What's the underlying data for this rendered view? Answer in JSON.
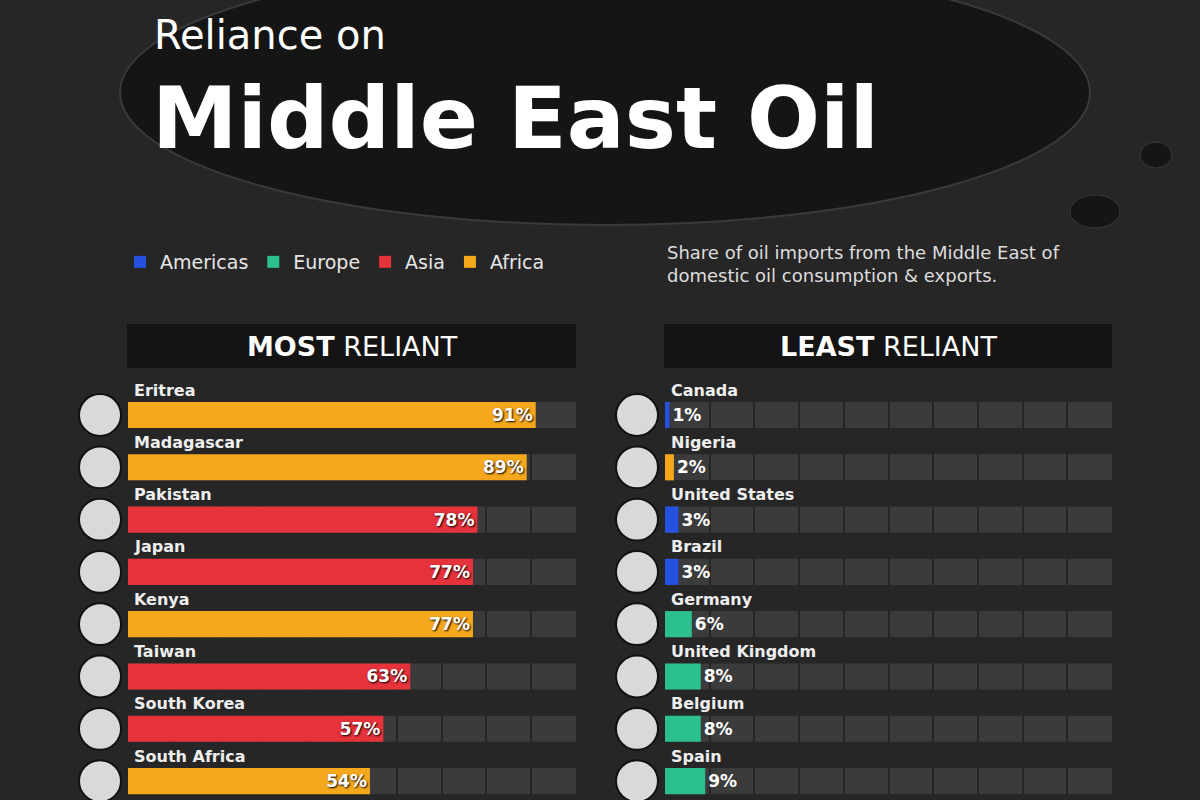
{
  "header": {
    "kicker": "Reliance on",
    "title": "Middle East Oil",
    "subtitle": "Share of oil imports from the Middle East of domestic oil consumption & exports."
  },
  "chart_data": [
    {
      "type": "bar",
      "orientation": "horizontal",
      "title": "MOST RELIANT",
      "categories": [
        "Eritrea",
        "Madagascar",
        "Pakistan",
        "Japan",
        "Kenya",
        "Taiwan",
        "South Korea",
        "South Africa"
      ],
      "series": [
        {
          "name": "Americas",
          "color": "#2451e0",
          "values": [
            null,
            null,
            null,
            null,
            null,
            null,
            null,
            null
          ],
          "value_labels": [
            null,
            null,
            null,
            null,
            null,
            null,
            null,
            null
          ]
        },
        {
          "name": "Europe",
          "color": "#2cc08f",
          "values": [
            null,
            null,
            null,
            null,
            null,
            null,
            null,
            null
          ],
          "value_labels": [
            null,
            null,
            null,
            null,
            null,
            null,
            null,
            null
          ]
        },
        {
          "name": "Asia",
          "color": "#e5323b",
          "values": [
            null,
            null,
            78,
            77,
            null,
            63,
            57,
            null
          ],
          "value_labels": [
            null,
            null,
            "78%",
            "77%",
            null,
            "63%",
            "57%",
            null
          ]
        },
        {
          "name": "Africa",
          "color": "#f5a81c",
          "values": [
            91,
            89,
            null,
            null,
            77,
            null,
            null,
            54
          ],
          "value_labels": [
            "91%",
            "89%",
            null,
            null,
            "77%",
            null,
            null,
            "54%"
          ]
        }
      ],
      "xlim": [
        0,
        100
      ],
      "xticks": [
        0,
        10,
        20,
        30,
        40,
        50,
        60,
        70,
        80,
        90,
        100
      ],
      "grid": true,
      "tick_labels": false,
      "data_labels": true,
      "legend": "top left"
    },
    {
      "type": "bar",
      "orientation": "horizontal",
      "title": "LEAST RELIANT",
      "categories": [
        "Canada",
        "Nigeria",
        "United States",
        "Brazil",
        "Germany",
        "United Kingdom",
        "Belgium",
        "Spain"
      ],
      "series": [
        {
          "name": "Americas",
          "color": "#2451e0",
          "values": [
            1,
            null,
            3,
            3,
            null,
            null,
            null,
            null
          ],
          "value_labels": [
            "1%",
            null,
            "3%",
            "3%",
            null,
            null,
            null,
            null
          ]
        },
        {
          "name": "Europe",
          "color": "#2cc08f",
          "values": [
            null,
            null,
            null,
            null,
            6,
            8,
            8,
            9
          ],
          "value_labels": [
            null,
            null,
            null,
            null,
            "6%",
            "8%",
            "8%",
            "9%"
          ]
        },
        {
          "name": "Africa",
          "color": "#f5a81c",
          "values": [
            null,
            2,
            null,
            null,
            null,
            null,
            null,
            null
          ],
          "value_labels": [
            null,
            "2%",
            null,
            null,
            null,
            null,
            null,
            null
          ]
        }
      ],
      "xlim": [
        0,
        100
      ],
      "xticks": [
        0,
        10,
        20,
        30,
        40,
        50,
        60,
        70,
        80,
        90,
        100
      ],
      "grid": true,
      "tick_labels": false,
      "data_labels": true
    }
  ]
}
